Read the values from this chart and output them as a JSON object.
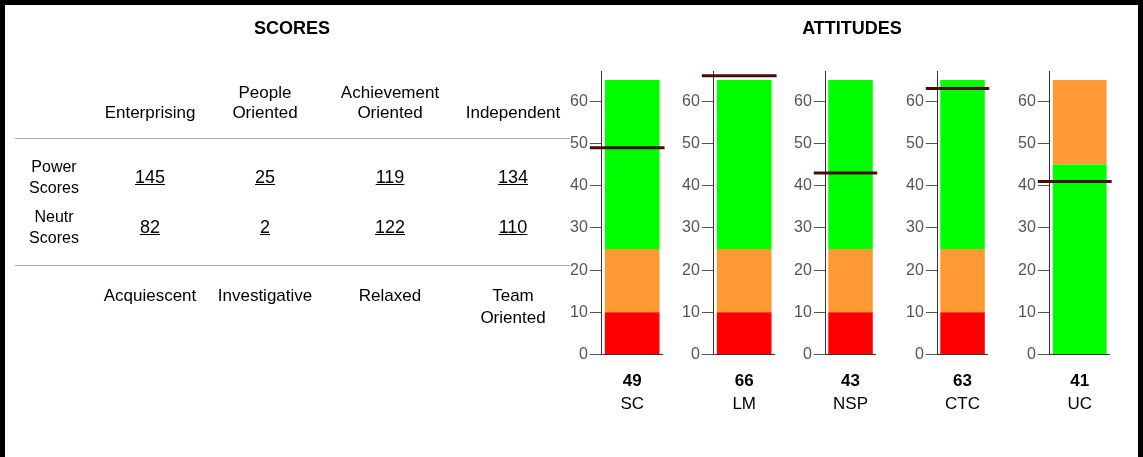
{
  "chart_data": [
    {
      "type": "other",
      "title": "SCORES",
      "categories": [
        "Enterprising",
        "People Oriented",
        "Achievement Oriented",
        "Independent"
      ],
      "series": [
        {
          "name": "Power Scores",
          "values": [
            145,
            25,
            119,
            134
          ]
        },
        {
          "name": "Neutr Scores",
          "values": [
            82,
            2,
            122,
            110
          ]
        }
      ],
      "data_labels": true,
      "annotations": [
        "Acquiescent",
        "Investigative",
        "Relaxed",
        "Team Oriented"
      ]
    },
    {
      "type": "bar",
      "stacked": true,
      "categories": [
        "SC"
      ],
      "series": [
        {
          "color": "#ff0000",
          "values": [
            10
          ]
        },
        {
          "color": "#ff9933",
          "values": [
            15
          ]
        },
        {
          "color": "#00ff00",
          "values": [
            40
          ]
        }
      ],
      "ylim": [
        0,
        67
      ],
      "yticks": [
        0,
        10,
        20,
        30,
        40,
        50,
        60
      ],
      "grid": false,
      "legend": false,
      "ref_lines": [
        {
          "axis": "y",
          "value": 49,
          "color": "#4a0a0a"
        }
      ],
      "annotations": [
        "49"
      ]
    },
    {
      "type": "bar",
      "stacked": true,
      "categories": [
        "LM"
      ],
      "series": [
        {
          "color": "#ff0000",
          "values": [
            10
          ]
        },
        {
          "color": "#ff9933",
          "values": [
            15
          ]
        },
        {
          "color": "#00ff00",
          "values": [
            40
          ]
        }
      ],
      "ylim": [
        0,
        67
      ],
      "yticks": [
        0,
        10,
        20,
        30,
        40,
        50,
        60
      ],
      "grid": false,
      "legend": false,
      "ref_lines": [
        {
          "axis": "y",
          "value": 66,
          "color": "#4a0a0a"
        }
      ],
      "annotations": [
        "66"
      ]
    },
    {
      "type": "bar",
      "title": "ATTITUDES",
      "stacked": true,
      "categories": [
        "NSP"
      ],
      "series": [
        {
          "color": "#ff0000",
          "values": [
            10
          ]
        },
        {
          "color": "#ff9933",
          "values": [
            15
          ]
        },
        {
          "color": "#00ff00",
          "values": [
            40
          ]
        }
      ],
      "ylim": [
        0,
        67
      ],
      "yticks": [
        0,
        10,
        20,
        30,
        40,
        50,
        60
      ],
      "grid": false,
      "legend": false,
      "ref_lines": [
        {
          "axis": "y",
          "value": 43,
          "color": "#4a0a0a"
        }
      ],
      "annotations": [
        "43"
      ]
    },
    {
      "type": "bar",
      "stacked": true,
      "categories": [
        "CTC"
      ],
      "series": [
        {
          "color": "#ff0000",
          "values": [
            10
          ]
        },
        {
          "color": "#ff9933",
          "values": [
            15
          ]
        },
        {
          "color": "#00ff00",
          "values": [
            40
          ]
        }
      ],
      "ylim": [
        0,
        67
      ],
      "yticks": [
        0,
        10,
        20,
        30,
        40,
        50,
        60
      ],
      "grid": false,
      "legend": false,
      "ref_lines": [
        {
          "axis": "y",
          "value": 63,
          "color": "#4a0a0a"
        }
      ],
      "annotations": [
        "63"
      ]
    },
    {
      "type": "bar",
      "stacked": true,
      "categories": [
        "UC"
      ],
      "series": [
        {
          "color": "#00ff00",
          "values": [
            45
          ]
        },
        {
          "color": "#ff9933",
          "values": [
            20
          ]
        }
      ],
      "ylim": [
        0,
        67
      ],
      "yticks": [
        0,
        10,
        20,
        30,
        40,
        50,
        60
      ],
      "grid": false,
      "legend": false,
      "ref_lines": [
        {
          "axis": "y",
          "value": 41,
          "color": "#4a0a0a"
        }
      ],
      "annotations": [
        "41"
      ]
    }
  ]
}
